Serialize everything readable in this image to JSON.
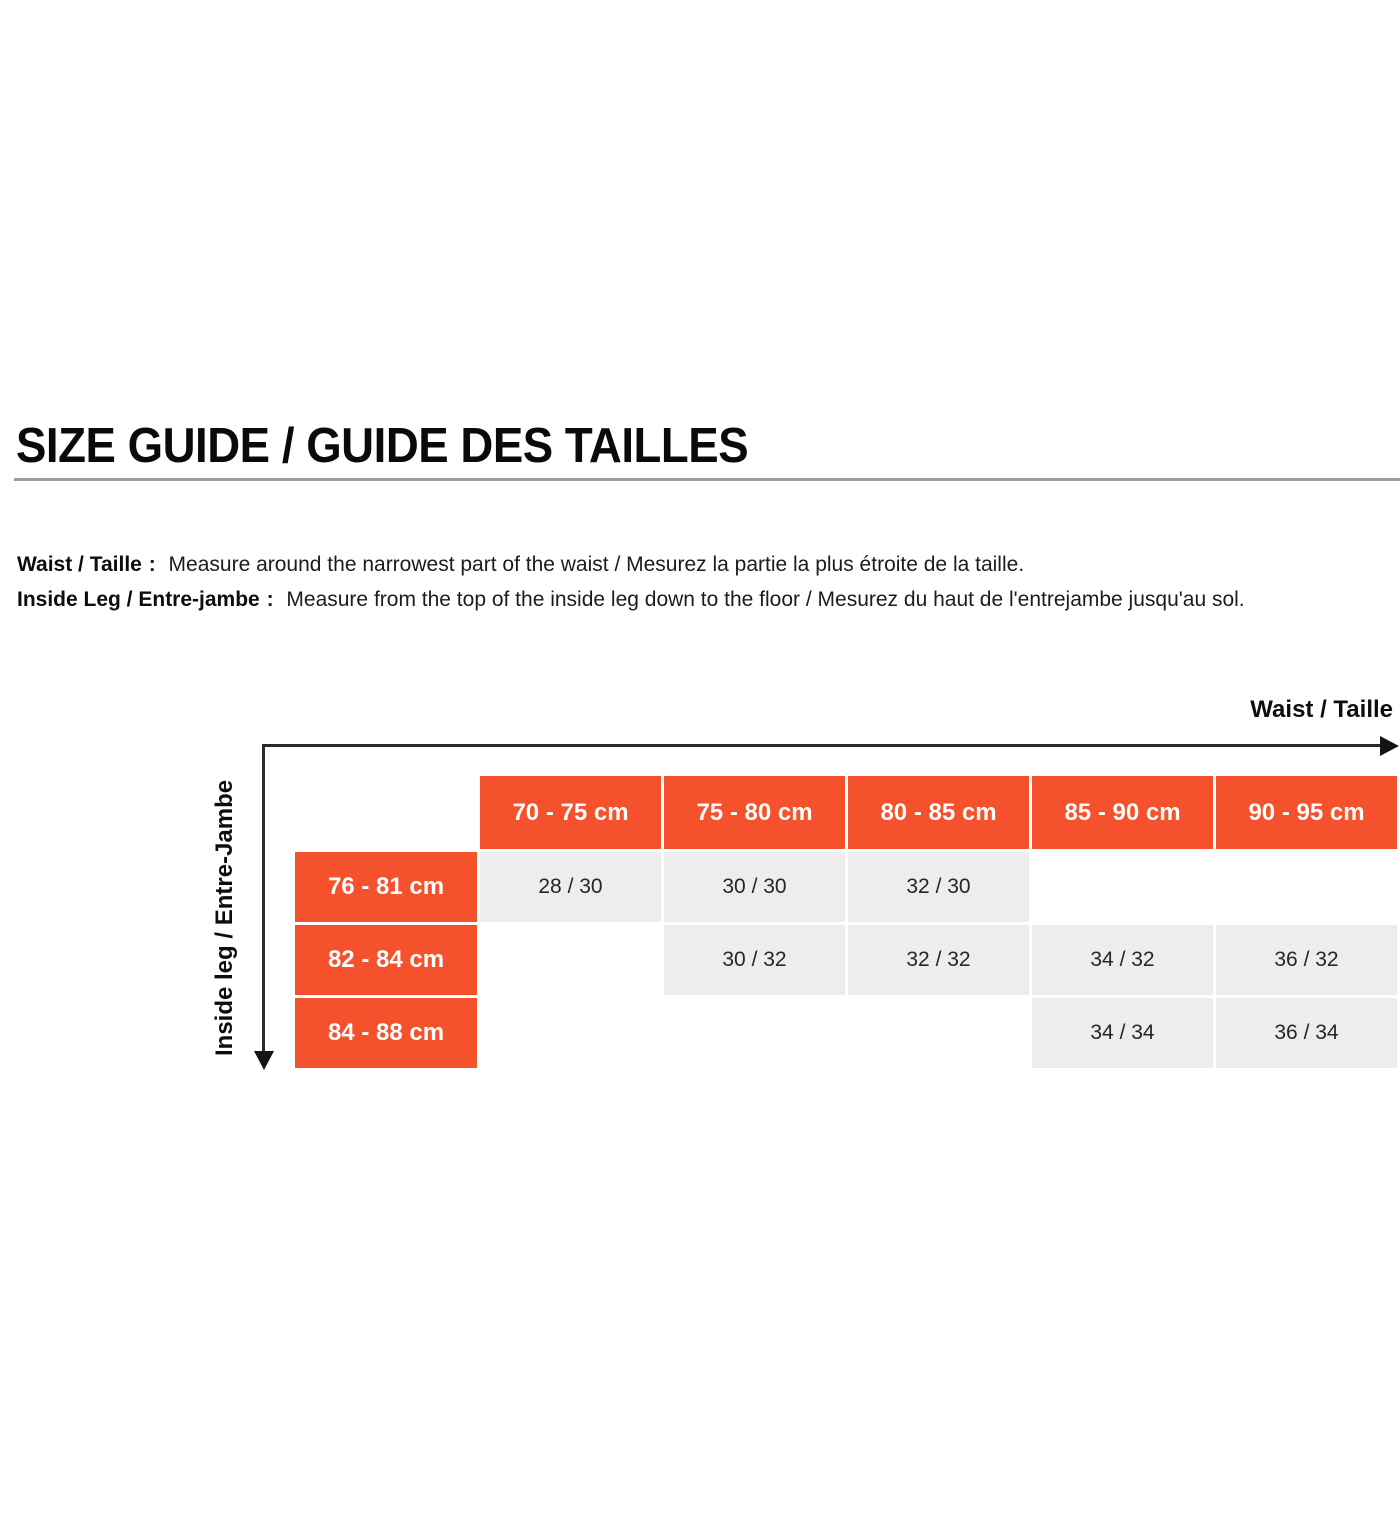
{
  "page": {
    "title": "SIZE GUIDE / GUIDE DES TAILLES"
  },
  "instructions": [
    {
      "label": "Waist / Taille",
      "separator": " : ",
      "text": "Measure around the narrowest part of the waist / Mesurez la partie la plus étroite de la taille."
    },
    {
      "label": "Inside Leg / Entre-jambe",
      "separator": " : ",
      "text": "Measure from the top of the inside leg down to the floor / Mesurez du haut de l'entrejambe jusqu'au sol."
    }
  ],
  "axes": {
    "waist_label": "Waist / Taille",
    "inside_leg_label": "Inside leg / Entre-Jambe"
  },
  "colors": {
    "accent_orange": "#F4512C",
    "cell_gray": "#EDEDEE",
    "divider_gray": "#9D9D9D",
    "arrow_black": "#141414"
  },
  "chart_data": {
    "type": "table",
    "title": "SIZE GUIDE / GUIDE DES TAILLES",
    "x_axis_label": "Waist / Taille",
    "y_axis_label": "Inside leg / Entre-Jambe",
    "columns": [
      "70 - 75 cm",
      "75 - 80 cm",
      "80 - 85 cm",
      "85 - 90 cm",
      "90 - 95 cm"
    ],
    "rows": [
      {
        "header": "76 - 81 cm",
        "cells": [
          "28 / 30",
          "30 / 30",
          "32 / 30",
          null,
          null
        ]
      },
      {
        "header": "82 - 84 cm",
        "cells": [
          null,
          "30 / 32",
          "32 / 32",
          "34 / 32",
          "36 / 32"
        ]
      },
      {
        "header": "84 - 88 cm",
        "cells": [
          null,
          null,
          null,
          "34 / 34",
          "36 / 34"
        ]
      }
    ]
  }
}
